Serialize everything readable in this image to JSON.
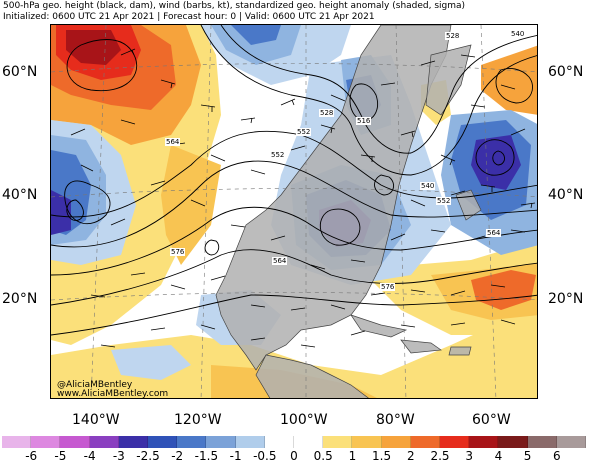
{
  "header": {
    "line1": "500-hPa geo. height (black, dam), wind (barbs, kt), standardized geo. height anomaly (shaded, sigma)",
    "line2": "Initialized: 0600 UTC 21 Apr 2021 | Forecast hour: 0 | Valid: 0600 UTC 21 Apr 2021"
  },
  "map": {
    "lat_labels": [
      "60°N",
      "40°N",
      "20°N"
    ],
    "lon_labels": [
      "140°W",
      "120°W",
      "100°W",
      "80°W",
      "60°W"
    ],
    "contour_labels": [
      "528",
      "540",
      "528",
      "516",
      "564",
      "552",
      "540",
      "552",
      "576",
      "564",
      "564",
      "576",
      "552"
    ],
    "credit": [
      "@AliciaMBentley",
      "www.AliciaMBentley.com"
    ],
    "colors": {
      "land": "#b0b0b0",
      "ocean": "#ffffff",
      "contour": "#000000",
      "strong_pos": "#b01010",
      "pos": "#ec5a28",
      "weak_pos": "#f6a33c",
      "faint_pos": "#fbe07a",
      "strong_neg": "#3a3aa8",
      "neg": "#4a78c8",
      "weak_neg": "#8fb4e0",
      "faint_neg": "#bfd6ef"
    }
  },
  "colorbar": {
    "ticks": [
      "-6",
      "-5",
      "-4",
      "-3",
      "-2.5",
      "-2",
      "-1.5",
      "-1",
      "-0.5",
      "0",
      "0.5",
      "1",
      "1.5",
      "2",
      "2.5",
      "3",
      "4",
      "5",
      "6"
    ],
    "colors": [
      "#e8b4ea",
      "#dd88e0",
      "#c659d0",
      "#8a3fc0",
      "#3b2fa8",
      "#2f52b8",
      "#4a78c8",
      "#7ba2d8",
      "#b0cdeb",
      "#ffffff",
      "#ffffff",
      "#fbe07a",
      "#f8c452",
      "#f6a33c",
      "#ee6a2a",
      "#e62c1c",
      "#a81418",
      "#7a1a1a",
      "#8a6a6a",
      "#a89a9a"
    ]
  }
}
